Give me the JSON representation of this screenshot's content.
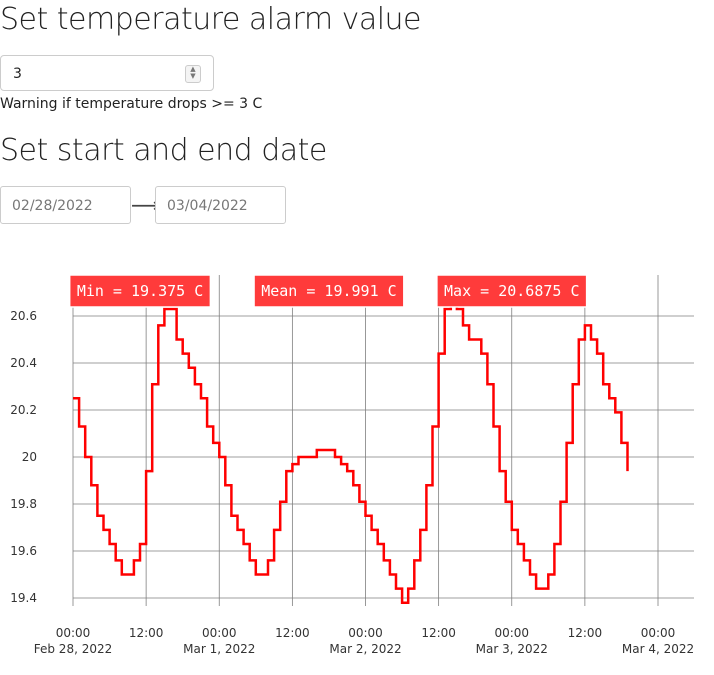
{
  "alarm": {
    "title": "Set temperature alarm value",
    "value": "3",
    "warning": "Warning if temperature drops >= 3 C"
  },
  "dates": {
    "title": "Set start and end date",
    "start": "02/28/2022",
    "end": "03/04/2022",
    "arrow": "⟶"
  },
  "colors": {
    "series": "#ff0000",
    "annotation_bg": "#ff3b3b",
    "grid": "#7f7f7f"
  },
  "chart_data": {
    "type": "line",
    "title": "",
    "xlabel": "",
    "ylabel": "",
    "grid": true,
    "legend": "none",
    "xlim": [
      "2022-02-28 00:00",
      "2022-03-04 00:00"
    ],
    "ylim": [
      19.3,
      20.8
    ],
    "x_ticks": [
      {
        "at": "2022-02-28 00:00",
        "line1": "00:00",
        "line2": "Feb 28, 2022"
      },
      {
        "at": "2022-02-28 12:00",
        "line1": "12:00",
        "line2": ""
      },
      {
        "at": "2022-03-01 00:00",
        "line1": "00:00",
        "line2": "Mar 1, 2022"
      },
      {
        "at": "2022-03-01 12:00",
        "line1": "12:00",
        "line2": ""
      },
      {
        "at": "2022-03-02 00:00",
        "line1": "00:00",
        "line2": "Mar 2, 2022"
      },
      {
        "at": "2022-03-02 12:00",
        "line1": "12:00",
        "line2": ""
      },
      {
        "at": "2022-03-03 00:00",
        "line1": "00:00",
        "line2": "Mar 3, 2022"
      },
      {
        "at": "2022-03-03 12:00",
        "line1": "12:00",
        "line2": ""
      },
      {
        "at": "2022-03-04 00:00",
        "line1": "00:00",
        "line2": "Mar 4, 2022"
      }
    ],
    "y_ticks": [
      {
        "value": 19.4,
        "label": "19.4"
      },
      {
        "value": 19.6,
        "label": "19.6"
      },
      {
        "value": 19.8,
        "label": "19.8"
      },
      {
        "value": 20.0,
        "label": "20"
      },
      {
        "value": 20.2,
        "label": "20.2"
      },
      {
        "value": 20.4,
        "label": "20.4"
      },
      {
        "value": 20.6,
        "label": "20.6"
      }
    ],
    "annotations": [
      {
        "label": "Min = 19.375 C",
        "at": "2022-02-28 11:00"
      },
      {
        "label": "Mean = 19.991 C",
        "at": "2022-03-01 18:00"
      },
      {
        "label": "Max = 20.6875 C",
        "at": "2022-03-03 00:00"
      }
    ],
    "series": [
      {
        "points": [
          [
            "2022-02-28 00:00",
            20.25
          ],
          [
            "2022-02-28 01:00",
            20.13
          ],
          [
            "2022-02-28 02:00",
            20.0
          ],
          [
            "2022-02-28 03:00",
            19.88
          ],
          [
            "2022-02-28 04:00",
            19.75
          ],
          [
            "2022-02-28 05:00",
            19.69
          ],
          [
            "2022-02-28 06:00",
            19.63
          ],
          [
            "2022-02-28 07:00",
            19.56
          ],
          [
            "2022-02-28 08:00",
            19.5
          ],
          [
            "2022-02-28 09:00",
            19.5
          ],
          [
            "2022-02-28 10:00",
            19.56
          ],
          [
            "2022-02-28 11:00",
            19.63
          ],
          [
            "2022-02-28 12:00",
            19.94
          ],
          [
            "2022-02-28 13:00",
            20.31
          ],
          [
            "2022-02-28 14:00",
            20.56
          ],
          [
            "2022-02-28 15:00",
            20.63
          ],
          [
            "2022-02-28 16:00",
            20.63
          ],
          [
            "2022-02-28 17:00",
            20.5
          ],
          [
            "2022-02-28 18:00",
            20.44
          ],
          [
            "2022-02-28 19:00",
            20.38
          ],
          [
            "2022-02-28 20:00",
            20.31
          ],
          [
            "2022-02-28 21:00",
            20.25
          ],
          [
            "2022-02-28 22:00",
            20.13
          ],
          [
            "2022-02-28 23:00",
            20.06
          ],
          [
            "2022-03-01 00:00",
            20.0
          ],
          [
            "2022-03-01 01:00",
            19.88
          ],
          [
            "2022-03-01 02:00",
            19.75
          ],
          [
            "2022-03-01 03:00",
            19.69
          ],
          [
            "2022-03-01 04:00",
            19.63
          ],
          [
            "2022-03-01 05:00",
            19.56
          ],
          [
            "2022-03-01 06:00",
            19.5
          ],
          [
            "2022-03-01 07:00",
            19.5
          ],
          [
            "2022-03-01 08:00",
            19.56
          ],
          [
            "2022-03-01 09:00",
            19.69
          ],
          [
            "2022-03-01 10:00",
            19.81
          ],
          [
            "2022-03-01 11:00",
            19.94
          ],
          [
            "2022-03-01 12:00",
            19.97
          ],
          [
            "2022-03-01 13:00",
            20.0
          ],
          [
            "2022-03-01 14:00",
            20.0
          ],
          [
            "2022-03-01 15:00",
            20.0
          ],
          [
            "2022-03-01 16:00",
            20.03
          ],
          [
            "2022-03-01 17:00",
            20.03
          ],
          [
            "2022-03-01 18:00",
            20.03
          ],
          [
            "2022-03-01 19:00",
            20.0
          ],
          [
            "2022-03-01 20:00",
            19.97
          ],
          [
            "2022-03-01 21:00",
            19.94
          ],
          [
            "2022-03-01 22:00",
            19.88
          ],
          [
            "2022-03-01 23:00",
            19.81
          ],
          [
            "2022-03-02 00:00",
            19.75
          ],
          [
            "2022-03-02 01:00",
            19.69
          ],
          [
            "2022-03-02 02:00",
            19.63
          ],
          [
            "2022-03-02 03:00",
            19.56
          ],
          [
            "2022-03-02 04:00",
            19.5
          ],
          [
            "2022-03-02 05:00",
            19.44
          ],
          [
            "2022-03-02 06:00",
            19.38
          ],
          [
            "2022-03-02 07:00",
            19.44
          ],
          [
            "2022-03-02 08:00",
            19.56
          ],
          [
            "2022-03-02 09:00",
            19.69
          ],
          [
            "2022-03-02 10:00",
            19.88
          ],
          [
            "2022-03-02 11:00",
            20.13
          ],
          [
            "2022-03-02 12:00",
            20.44
          ],
          [
            "2022-03-02 13:00",
            20.63
          ],
          [
            "2022-03-02 14:00",
            20.69
          ],
          [
            "2022-03-02 15:00",
            20.63
          ],
          [
            "2022-03-02 16:00",
            20.56
          ],
          [
            "2022-03-02 17:00",
            20.5
          ],
          [
            "2022-03-02 18:00",
            20.5
          ],
          [
            "2022-03-02 19:00",
            20.44
          ],
          [
            "2022-03-02 20:00",
            20.31
          ],
          [
            "2022-03-02 21:00",
            20.13
          ],
          [
            "2022-03-02 22:00",
            19.94
          ],
          [
            "2022-03-02 23:00",
            19.81
          ],
          [
            "2022-03-03 00:00",
            19.69
          ],
          [
            "2022-03-03 01:00",
            19.63
          ],
          [
            "2022-03-03 02:00",
            19.56
          ],
          [
            "2022-03-03 03:00",
            19.5
          ],
          [
            "2022-03-03 04:00",
            19.44
          ],
          [
            "2022-03-03 05:00",
            19.44
          ],
          [
            "2022-03-03 06:00",
            19.5
          ],
          [
            "2022-03-03 07:00",
            19.63
          ],
          [
            "2022-03-03 08:00",
            19.81
          ],
          [
            "2022-03-03 09:00",
            20.06
          ],
          [
            "2022-03-03 10:00",
            20.31
          ],
          [
            "2022-03-03 11:00",
            20.5
          ],
          [
            "2022-03-03 12:00",
            20.56
          ],
          [
            "2022-03-03 13:00",
            20.5
          ],
          [
            "2022-03-03 14:00",
            20.44
          ],
          [
            "2022-03-03 15:00",
            20.31
          ],
          [
            "2022-03-03 16:00",
            20.25
          ],
          [
            "2022-03-03 17:00",
            20.19
          ],
          [
            "2022-03-03 18:00",
            20.06
          ],
          [
            "2022-03-03 19:00",
            19.94
          ]
        ]
      }
    ]
  }
}
